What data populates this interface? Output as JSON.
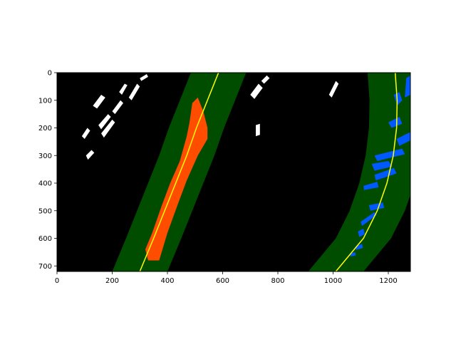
{
  "chart_data": {
    "type": "heatmap",
    "description_kind": "lane-line fitting on binary warped image",
    "title": "",
    "xlabel": "",
    "ylabel": "",
    "xlim": [
      0,
      1280
    ],
    "ylim": [
      720,
      0
    ],
    "x_ticks": [
      0,
      200,
      400,
      600,
      800,
      1000,
      1200
    ],
    "y_ticks": [
      0,
      100,
      200,
      300,
      400,
      500,
      600,
      700
    ],
    "grid": false,
    "legend": "none",
    "colors": {
      "background": "#000000",
      "search_window": "#004d00",
      "left_pixels": "#ff4d00",
      "right_pixels": "#0059ff",
      "fit_line": "#ffff00",
      "noise": "#ffffff"
    },
    "search_margin": 100,
    "left_fit": {
      "points": [
        [
          585,
          0
        ],
        [
          545,
          100
        ],
        [
          505,
          200
        ],
        [
          470,
          300
        ],
        [
          430,
          400
        ],
        [
          390,
          500
        ],
        [
          350,
          600
        ],
        [
          300,
          720
        ]
      ]
    },
    "right_fit": {
      "points": [
        [
          1225,
          0
        ],
        [
          1232,
          100
        ],
        [
          1230,
          200
        ],
        [
          1218,
          300
        ],
        [
          1195,
          400
        ],
        [
          1160,
          500
        ],
        [
          1110,
          600
        ],
        [
          1010,
          720
        ]
      ]
    },
    "left_pixel_segments": [
      [
        [
          330,
          680
        ],
        [
          370,
          680
        ],
        [
          400,
          580
        ],
        [
          440,
          470
        ],
        [
          470,
          390
        ],
        [
          510,
          300
        ],
        [
          545,
          240
        ],
        [
          545,
          200
        ],
        [
          530,
          140
        ],
        [
          510,
          90
        ],
        [
          490,
          110
        ],
        [
          480,
          180
        ],
        [
          470,
          230
        ],
        [
          445,
          320
        ],
        [
          410,
          400
        ],
        [
          380,
          480
        ],
        [
          345,
          580
        ],
        [
          320,
          640
        ]
      ]
    ],
    "right_pixel_segments": [
      [
        [
          1220,
          80
        ],
        [
          1240,
          70
        ],
        [
          1250,
          100
        ],
        [
          1232,
          120
        ]
      ],
      [
        [
          1265,
          20
        ],
        [
          1280,
          10
        ],
        [
          1280,
          80
        ],
        [
          1260,
          90
        ]
      ],
      [
        [
          1200,
          180
        ],
        [
          1240,
          160
        ],
        [
          1250,
          185
        ],
        [
          1212,
          200
        ]
      ],
      [
        [
          1230,
          240
        ],
        [
          1280,
          215
        ],
        [
          1280,
          245
        ],
        [
          1240,
          265
        ]
      ],
      [
        [
          1150,
          300
        ],
        [
          1250,
          275
        ],
        [
          1260,
          295
        ],
        [
          1160,
          320
        ]
      ],
      [
        [
          1140,
          330
        ],
        [
          1200,
          320
        ],
        [
          1215,
          340
        ],
        [
          1150,
          355
        ]
      ],
      [
        [
          1150,
          370
        ],
        [
          1220,
          345
        ],
        [
          1230,
          365
        ],
        [
          1155,
          390
        ]
      ],
      [
        [
          1110,
          410
        ],
        [
          1160,
          395
        ],
        [
          1165,
          415
        ],
        [
          1112,
          425
        ]
      ],
      [
        [
          1130,
          480
        ],
        [
          1180,
          470
        ],
        [
          1185,
          490
        ],
        [
          1135,
          500
        ]
      ],
      [
        [
          1100,
          540
        ],
        [
          1150,
          505
        ],
        [
          1158,
          515
        ],
        [
          1105,
          555
        ]
      ],
      [
        [
          1090,
          575
        ],
        [
          1110,
          565
        ],
        [
          1115,
          585
        ],
        [
          1095,
          595
        ]
      ],
      [
        [
          1080,
          630
        ],
        [
          1105,
          620
        ],
        [
          1108,
          635
        ],
        [
          1083,
          642
        ]
      ],
      [
        [
          1060,
          655
        ],
        [
          1080,
          650
        ],
        [
          1082,
          662
        ],
        [
          1062,
          665
        ]
      ]
    ],
    "noise_segments": [
      [
        [
          90,
          230
        ],
        [
          110,
          200
        ],
        [
          120,
          210
        ],
        [
          100,
          240
        ]
      ],
      [
        [
          105,
          300
        ],
        [
          125,
          280
        ],
        [
          135,
          290
        ],
        [
          112,
          315
        ]
      ],
      [
        [
          130,
          120
        ],
        [
          160,
          80
        ],
        [
          175,
          90
        ],
        [
          145,
          130
        ]
      ],
      [
        [
          150,
          190
        ],
        [
          185,
          150
        ],
        [
          195,
          160
        ],
        [
          160,
          205
        ]
      ],
      [
        [
          160,
          220
        ],
        [
          200,
          170
        ],
        [
          210,
          180
        ],
        [
          170,
          235
        ]
      ],
      [
        [
          200,
          140
        ],
        [
          230,
          100
        ],
        [
          240,
          110
        ],
        [
          210,
          150
        ]
      ],
      [
        [
          225,
          70
        ],
        [
          245,
          40
        ],
        [
          255,
          45
        ],
        [
          235,
          80
        ]
      ],
      [
        [
          260,
          90
        ],
        [
          290,
          40
        ],
        [
          300,
          50
        ],
        [
          270,
          100
        ]
      ],
      [
        [
          300,
          20
        ],
        [
          325,
          5
        ],
        [
          330,
          15
        ],
        [
          305,
          30
        ]
      ],
      [
        [
          700,
          80
        ],
        [
          730,
          40
        ],
        [
          745,
          55
        ],
        [
          715,
          95
        ]
      ],
      [
        [
          740,
          30
        ],
        [
          760,
          10
        ],
        [
          770,
          20
        ],
        [
          750,
          40
        ]
      ],
      [
        [
          720,
          190
        ],
        [
          735,
          185
        ],
        [
          735,
          225
        ],
        [
          720,
          230
        ]
      ],
      [
        [
          985,
          80
        ],
        [
          1010,
          30
        ],
        [
          1020,
          40
        ],
        [
          995,
          90
        ]
      ]
    ]
  }
}
